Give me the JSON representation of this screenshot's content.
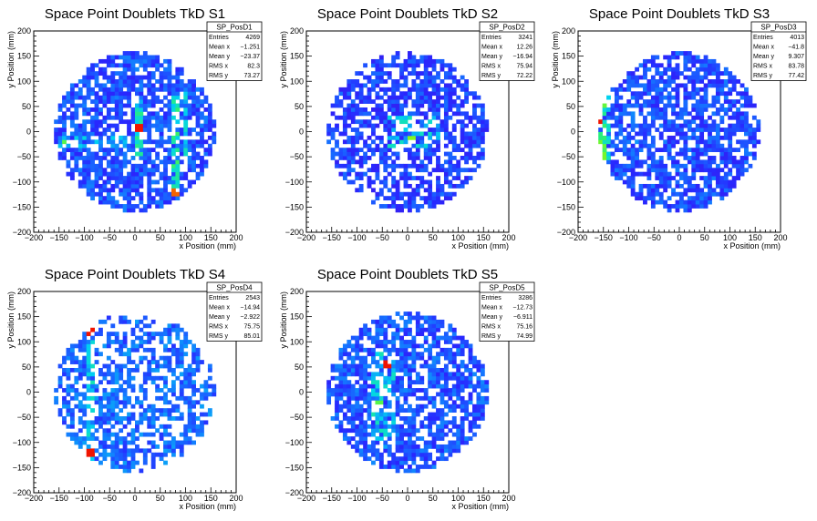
{
  "chart_data": [
    {
      "type": "heatmap",
      "title": "Space Point Doublets TkD S1",
      "xlabel": "x Position (mm)",
      "ylabel": "y Position (mm)",
      "xlim": [
        -200,
        200
      ],
      "ylim": [
        -200,
        200
      ],
      "xticks": [
        "−200",
        "−150",
        "−100",
        "−50",
        "0",
        "50",
        "100",
        "150",
        "200"
      ],
      "yticks": [
        "−200",
        "−150",
        "−100",
        "−50",
        "0",
        "50",
        "100",
        "150",
        "200"
      ],
      "stats": {
        "name": "SP_PosD1",
        "rows": [
          [
            "Entries",
            "4269"
          ],
          [
            "Mean x",
            "−1.251"
          ],
          [
            "Mean y",
            "−23.37"
          ],
          [
            "RMS x",
            "82.3"
          ],
          [
            "RMS y",
            "73.27"
          ]
        ]
      },
      "features": [
        {
          "kind": "vline",
          "x": 5,
          "y0": -60,
          "y1": 60,
          "level": 0.6
        },
        {
          "kind": "vline",
          "x": 80,
          "y0": -130,
          "y1": 70,
          "level": 0.65
        },
        {
          "kind": "vline",
          "x": 100,
          "y0": -80,
          "y1": 80,
          "level": 0.55
        },
        {
          "kind": "band",
          "x0": -150,
          "y0": -30,
          "x1": -20,
          "y1": -10,
          "level": 0.5
        },
        {
          "kind": "spot",
          "x": 5,
          "y": 5,
          "level": 1.0
        },
        {
          "kind": "spot",
          "x": 80,
          "y": -120,
          "level": 0.95
        },
        {
          "kind": "spot",
          "x": -135,
          "y": -20,
          "level": 0.7
        }
      ],
      "occupancy": 0.72,
      "base": 0.15
    },
    {
      "type": "heatmap",
      "title": "Space Point Doublets TkD S2",
      "xlabel": "x Position (mm)",
      "ylabel": "y Position (mm)",
      "xlim": [
        -200,
        200
      ],
      "ylim": [
        -200,
        200
      ],
      "xticks": [
        "−200",
        "−150",
        "−100",
        "−50",
        "0",
        "50",
        "100",
        "150",
        "200"
      ],
      "yticks": [
        "−200",
        "−150",
        "−100",
        "−50",
        "0",
        "50",
        "100",
        "150",
        "200"
      ],
      "stats": {
        "name": "SP_PosD2",
        "rows": [
          [
            "Entries",
            "3241"
          ],
          [
            "Mean x",
            "12.26"
          ],
          [
            "Mean y",
            "−16.94"
          ],
          [
            "RMS x",
            "75.94"
          ],
          [
            "RMS y",
            "72.22"
          ]
        ]
      },
      "features": [
        {
          "kind": "band",
          "x0": -40,
          "y0": -30,
          "x1": 60,
          "y1": 30,
          "level": 0.55
        },
        {
          "kind": "spot",
          "x": 10,
          "y": -15,
          "level": 0.75
        }
      ],
      "occupancy": 0.62,
      "base": 0.12
    },
    {
      "type": "heatmap",
      "title": "Space Point Doublets TkD S3",
      "xlabel": "x Position (mm)",
      "ylabel": "y Position (mm)",
      "xlim": [
        -200,
        200
      ],
      "ylim": [
        -200,
        200
      ],
      "xticks": [
        "−200",
        "−150",
        "−100",
        "−50",
        "0",
        "50",
        "100",
        "150",
        "200"
      ],
      "yticks": [
        "−200",
        "−150",
        "−100",
        "−50",
        "0",
        "50",
        "100",
        "150",
        "200"
      ],
      "stats": {
        "name": "SP_PosD3",
        "rows": [
          [
            "Entries",
            "4013"
          ],
          [
            "Mean x",
            "−41.8"
          ],
          [
            "Mean y",
            "9.307"
          ],
          [
            "RMS x",
            "83.78"
          ],
          [
            "RMS y",
            "77.42"
          ]
        ]
      },
      "features": [
        {
          "kind": "vline",
          "x": -150,
          "y0": -100,
          "y1": 100,
          "level": 0.7
        },
        {
          "kind": "vline",
          "x": -140,
          "y0": -120,
          "y1": 110,
          "level": 0.55
        },
        {
          "kind": "spot",
          "x": -160,
          "y": 20,
          "level": 1.0
        },
        {
          "kind": "vline",
          "x": -90,
          "y0": -40,
          "y1": 40,
          "level": 0.4
        }
      ],
      "occupancy": 0.7,
      "base": 0.14
    },
    {
      "type": "heatmap",
      "title": "Space Point Doublets TkD S4",
      "xlabel": "x Position (mm)",
      "ylabel": "y Position (mm)",
      "xlim": [
        -200,
        200
      ],
      "ylim": [
        -200,
        200
      ],
      "xticks": [
        "−200",
        "−150",
        "−100",
        "−50",
        "0",
        "50",
        "100",
        "150",
        "200"
      ],
      "yticks": [
        "−200",
        "−150",
        "−100",
        "−50",
        "0",
        "50",
        "100",
        "150",
        "200"
      ],
      "stats": {
        "name": "SP_PosD4",
        "rows": [
          [
            "Entries",
            "2543"
          ],
          [
            "Mean x",
            "−14.94"
          ],
          [
            "Mean y",
            "−2.922"
          ],
          [
            "RMS x",
            "75.75"
          ],
          [
            "RMS y",
            "85.01"
          ]
        ]
      },
      "features": [
        {
          "kind": "vline",
          "x": -85,
          "y0": -140,
          "y1": 130,
          "level": 0.55
        },
        {
          "kind": "spot",
          "x": -85,
          "y": 120,
          "level": 1.0
        },
        {
          "kind": "spot",
          "x": -85,
          "y": -120,
          "level": 1.0
        },
        {
          "kind": "vline",
          "x": -40,
          "y0": -100,
          "y1": 40,
          "level": 0.4
        }
      ],
      "occupancy": 0.55,
      "base": 0.2
    },
    {
      "type": "heatmap",
      "title": "Space Point Doublets TkD S5",
      "xlabel": "x Position (mm)",
      "ylabel": "y Position (mm)",
      "xlim": [
        -200,
        200
      ],
      "ylim": [
        -200,
        200
      ],
      "xticks": [
        "−200",
        "−150",
        "−100",
        "−50",
        "0",
        "50",
        "100",
        "150",
        "200"
      ],
      "yticks": [
        "−200",
        "−150",
        "−100",
        "−50",
        "0",
        "50",
        "100",
        "150",
        "200"
      ],
      "stats": {
        "name": "SP_PosD5",
        "rows": [
          [
            "Entries",
            "3286"
          ],
          [
            "Mean x",
            "−12.73"
          ],
          [
            "Mean y",
            "−6.911"
          ],
          [
            "RMS x",
            "75.16"
          ],
          [
            "RMS y",
            "74.99"
          ]
        ]
      },
      "features": [
        {
          "kind": "band",
          "x0": -75,
          "y0": -110,
          "x1": -25,
          "y1": 80,
          "level": 0.55
        },
        {
          "kind": "spot",
          "x": -40,
          "y": 55,
          "level": 1.0
        },
        {
          "kind": "spot",
          "x": -55,
          "y": -20,
          "level": 0.7
        }
      ],
      "occupancy": 0.72,
      "base": 0.16
    }
  ]
}
